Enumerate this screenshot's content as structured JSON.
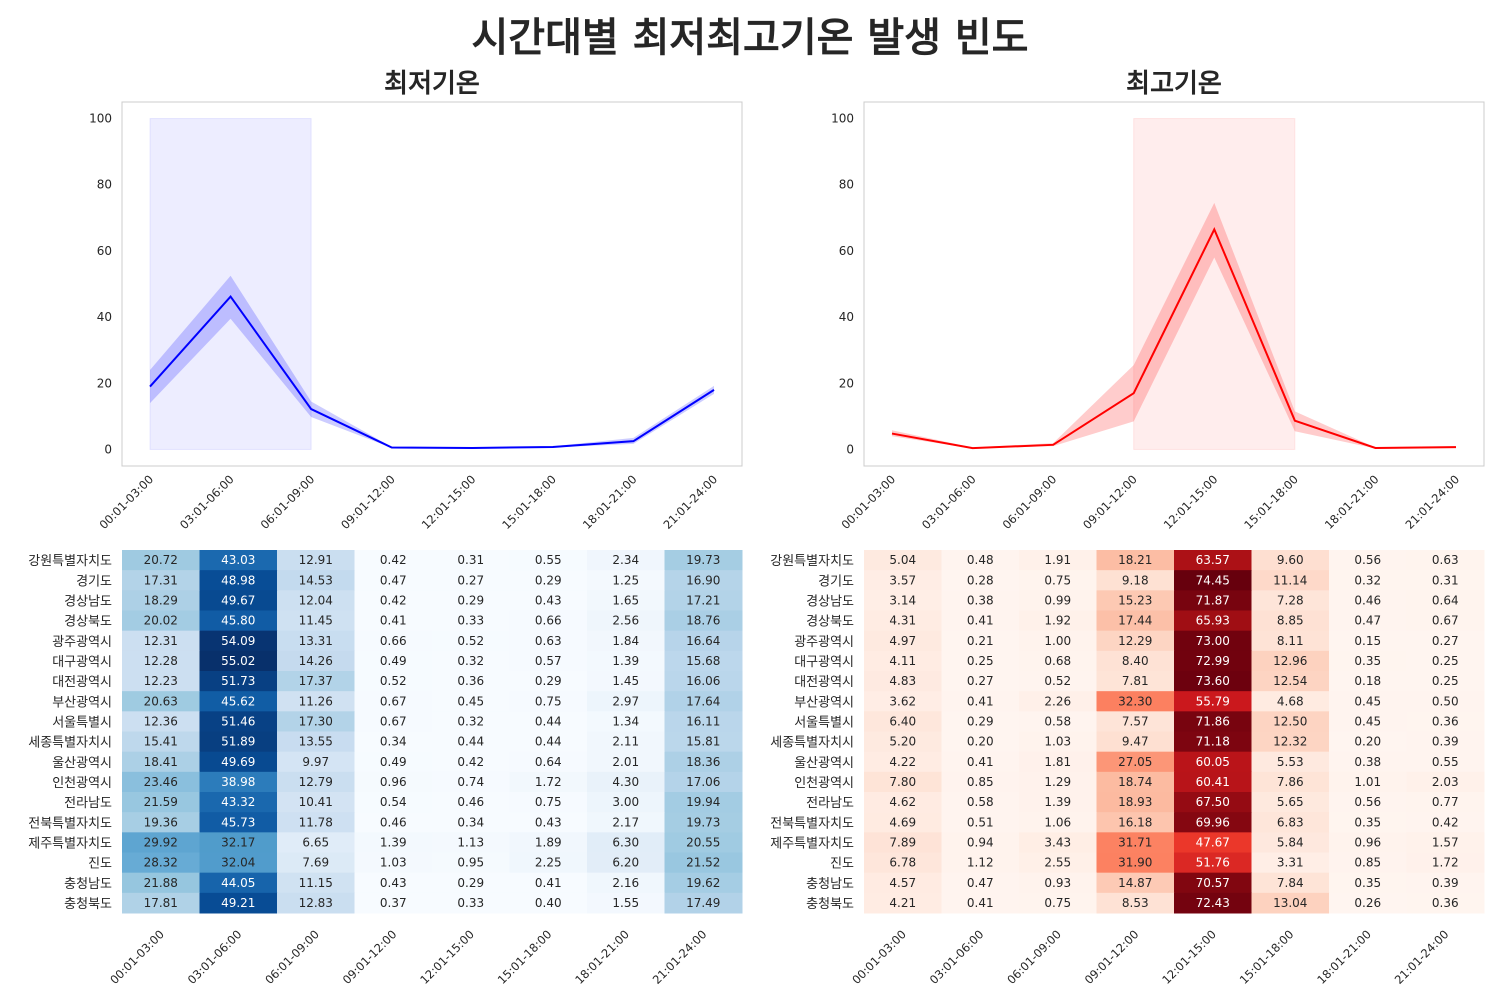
{
  "suptitle": "시간대별 최저최고기온 발생 빈도",
  "time_bins": [
    "00:01-03:00",
    "03:01-06:00",
    "06:01-09:00",
    "09:01-12:00",
    "12:01-15:00",
    "15:01-18:00",
    "18:01-21:00",
    "21:01-24:00"
  ],
  "regions": [
    "강원특별자치도",
    "경기도",
    "경상남도",
    "경상북도",
    "광주광역시",
    "대구광역시",
    "대전광역시",
    "부산광역시",
    "서울특별시",
    "세종특별자치시",
    "울산광역시",
    "인천광역시",
    "전라남도",
    "전북특별자치도",
    "제주특별자치도",
    "진도",
    "충청남도",
    "충청북도"
  ],
  "colors": {
    "min_line": "#0000ff",
    "max_line": "#ff0000",
    "min_band": "#ccccff",
    "max_band": "#ffcccc"
  },
  "chart_data": [
    {
      "type": "line",
      "title": "최저기온",
      "color": "#0000ff",
      "x": [
        "00:01-03:00",
        "03:01-06:00",
        "06:01-09:00",
        "09:01-12:00",
        "12:01-15:00",
        "15:01-18:00",
        "18:01-21:00",
        "21:01-24:00"
      ],
      "y": [
        19.0,
        46.2,
        12.2,
        0.6,
        0.45,
        0.75,
        2.5,
        18.0
      ],
      "ci_low": [
        14.0,
        39.5,
        9.8,
        0.5,
        0.4,
        0.6,
        1.7,
        16.8
      ],
      "ci_high": [
        24.0,
        52.5,
        14.5,
        0.75,
        0.55,
        0.95,
        3.5,
        19.2
      ],
      "highlight_x": [
        "00:01-03:00",
        "06:01-09:00"
      ],
      "highlight_y": [
        0,
        100
      ],
      "ylim": [
        -5,
        105
      ],
      "yticks": [
        0,
        20,
        40,
        60,
        80,
        100
      ],
      "grid": false
    },
    {
      "type": "line",
      "title": "최고기온",
      "color": "#ff0000",
      "x": [
        "00:01-03:00",
        "03:01-06:00",
        "06:01-09:00",
        "09:01-12:00",
        "12:01-15:00",
        "15:01-18:00",
        "18:01-21:00",
        "21:01-24:00"
      ],
      "y": [
        4.8,
        0.4,
        1.4,
        17.0,
        66.5,
        8.7,
        0.45,
        0.7
      ],
      "ci_low": [
        4.0,
        0.3,
        1.0,
        8.5,
        58.0,
        5.5,
        0.3,
        0.45
      ],
      "ci_high": [
        5.8,
        0.6,
        1.9,
        25.5,
        74.5,
        11.5,
        0.6,
        1.0
      ],
      "highlight_x": [
        "09:01-12:00",
        "15:01-18:00"
      ],
      "highlight_y": [
        0,
        100
      ],
      "ylim": [
        -5,
        105
      ],
      "yticks": [
        0,
        20,
        40,
        60,
        80,
        100
      ],
      "grid": false
    },
    {
      "type": "heatmap",
      "colormap": "Blues",
      "vmin": 0.34,
      "vmax": 55.02,
      "values": [
        [
          20.72,
          43.03,
          12.91,
          0.42,
          0.31,
          0.55,
          2.34,
          19.73
        ],
        [
          17.31,
          48.98,
          14.53,
          0.47,
          0.27,
          0.29,
          1.25,
          16.9
        ],
        [
          18.29,
          49.67,
          12.04,
          0.42,
          0.29,
          0.43,
          1.65,
          17.21
        ],
        [
          20.02,
          45.8,
          11.45,
          0.41,
          0.33,
          0.66,
          2.56,
          18.76
        ],
        [
          12.31,
          54.09,
          13.31,
          0.66,
          0.52,
          0.63,
          1.84,
          16.64
        ],
        [
          12.28,
          55.02,
          14.26,
          0.49,
          0.32,
          0.57,
          1.39,
          15.68
        ],
        [
          12.23,
          51.73,
          17.37,
          0.52,
          0.36,
          0.29,
          1.45,
          16.06
        ],
        [
          20.63,
          45.62,
          11.26,
          0.67,
          0.45,
          0.75,
          2.97,
          17.64
        ],
        [
          12.36,
          51.46,
          17.3,
          0.67,
          0.32,
          0.44,
          1.34,
          16.11
        ],
        [
          15.41,
          51.89,
          13.55,
          0.34,
          0.44,
          0.44,
          2.11,
          15.81
        ],
        [
          18.41,
          49.69,
          9.97,
          0.49,
          0.42,
          0.64,
          2.01,
          18.36
        ],
        [
          23.46,
          38.98,
          12.79,
          0.96,
          0.74,
          1.72,
          4.3,
          17.06
        ],
        [
          21.59,
          43.32,
          10.41,
          0.54,
          0.46,
          0.75,
          3.0,
          19.94
        ],
        [
          19.36,
          45.73,
          11.78,
          0.46,
          0.34,
          0.43,
          2.17,
          19.73
        ],
        [
          29.92,
          32.17,
          6.65,
          1.39,
          1.13,
          1.89,
          6.3,
          20.55
        ],
        [
          28.32,
          32.04,
          7.69,
          1.03,
          0.95,
          2.25,
          6.2,
          21.52
        ],
        [
          21.88,
          44.05,
          11.15,
          0.43,
          0.29,
          0.41,
          2.16,
          19.62
        ],
        [
          17.81,
          49.21,
          12.83,
          0.37,
          0.33,
          0.4,
          1.55,
          17.49
        ]
      ]
    },
    {
      "type": "heatmap",
      "colormap": "Reds",
      "vmin": 0.15,
      "vmax": 74.45,
      "values": [
        [
          5.04,
          0.48,
          1.91,
          18.21,
          63.57,
          9.6,
          0.56,
          0.63
        ],
        [
          3.57,
          0.28,
          0.75,
          9.18,
          74.45,
          11.14,
          0.32,
          0.31
        ],
        [
          3.14,
          0.38,
          0.99,
          15.23,
          71.87,
          7.28,
          0.46,
          0.64
        ],
        [
          4.31,
          0.41,
          1.92,
          17.44,
          65.93,
          8.85,
          0.47,
          0.67
        ],
        [
          4.97,
          0.21,
          1.0,
          12.29,
          73.0,
          8.11,
          0.15,
          0.27
        ],
        [
          4.11,
          0.25,
          0.68,
          8.4,
          72.99,
          12.96,
          0.35,
          0.25
        ],
        [
          4.83,
          0.27,
          0.52,
          7.81,
          73.6,
          12.54,
          0.18,
          0.25
        ],
        [
          3.62,
          0.41,
          2.26,
          32.3,
          55.79,
          4.68,
          0.45,
          0.5
        ],
        [
          6.4,
          0.29,
          0.58,
          7.57,
          71.86,
          12.5,
          0.45,
          0.36
        ],
        [
          5.2,
          0.2,
          1.03,
          9.47,
          71.18,
          12.32,
          0.2,
          0.39
        ],
        [
          4.22,
          0.41,
          1.81,
          27.05,
          60.05,
          5.53,
          0.38,
          0.55
        ],
        [
          7.8,
          0.85,
          1.29,
          18.74,
          60.41,
          7.86,
          1.01,
          2.03
        ],
        [
          4.62,
          0.58,
          1.39,
          18.93,
          67.5,
          5.65,
          0.56,
          0.77
        ],
        [
          4.69,
          0.51,
          1.06,
          16.18,
          69.96,
          6.83,
          0.35,
          0.42
        ],
        [
          7.89,
          0.94,
          3.43,
          31.71,
          47.67,
          5.84,
          0.96,
          1.57
        ],
        [
          6.78,
          1.12,
          2.55,
          31.9,
          51.76,
          3.31,
          0.85,
          1.72
        ],
        [
          4.57,
          0.47,
          0.93,
          14.87,
          70.57,
          7.84,
          0.35,
          0.39
        ],
        [
          4.21,
          0.41,
          0.75,
          8.53,
          72.43,
          13.04,
          0.26,
          0.36
        ]
      ]
    }
  ]
}
